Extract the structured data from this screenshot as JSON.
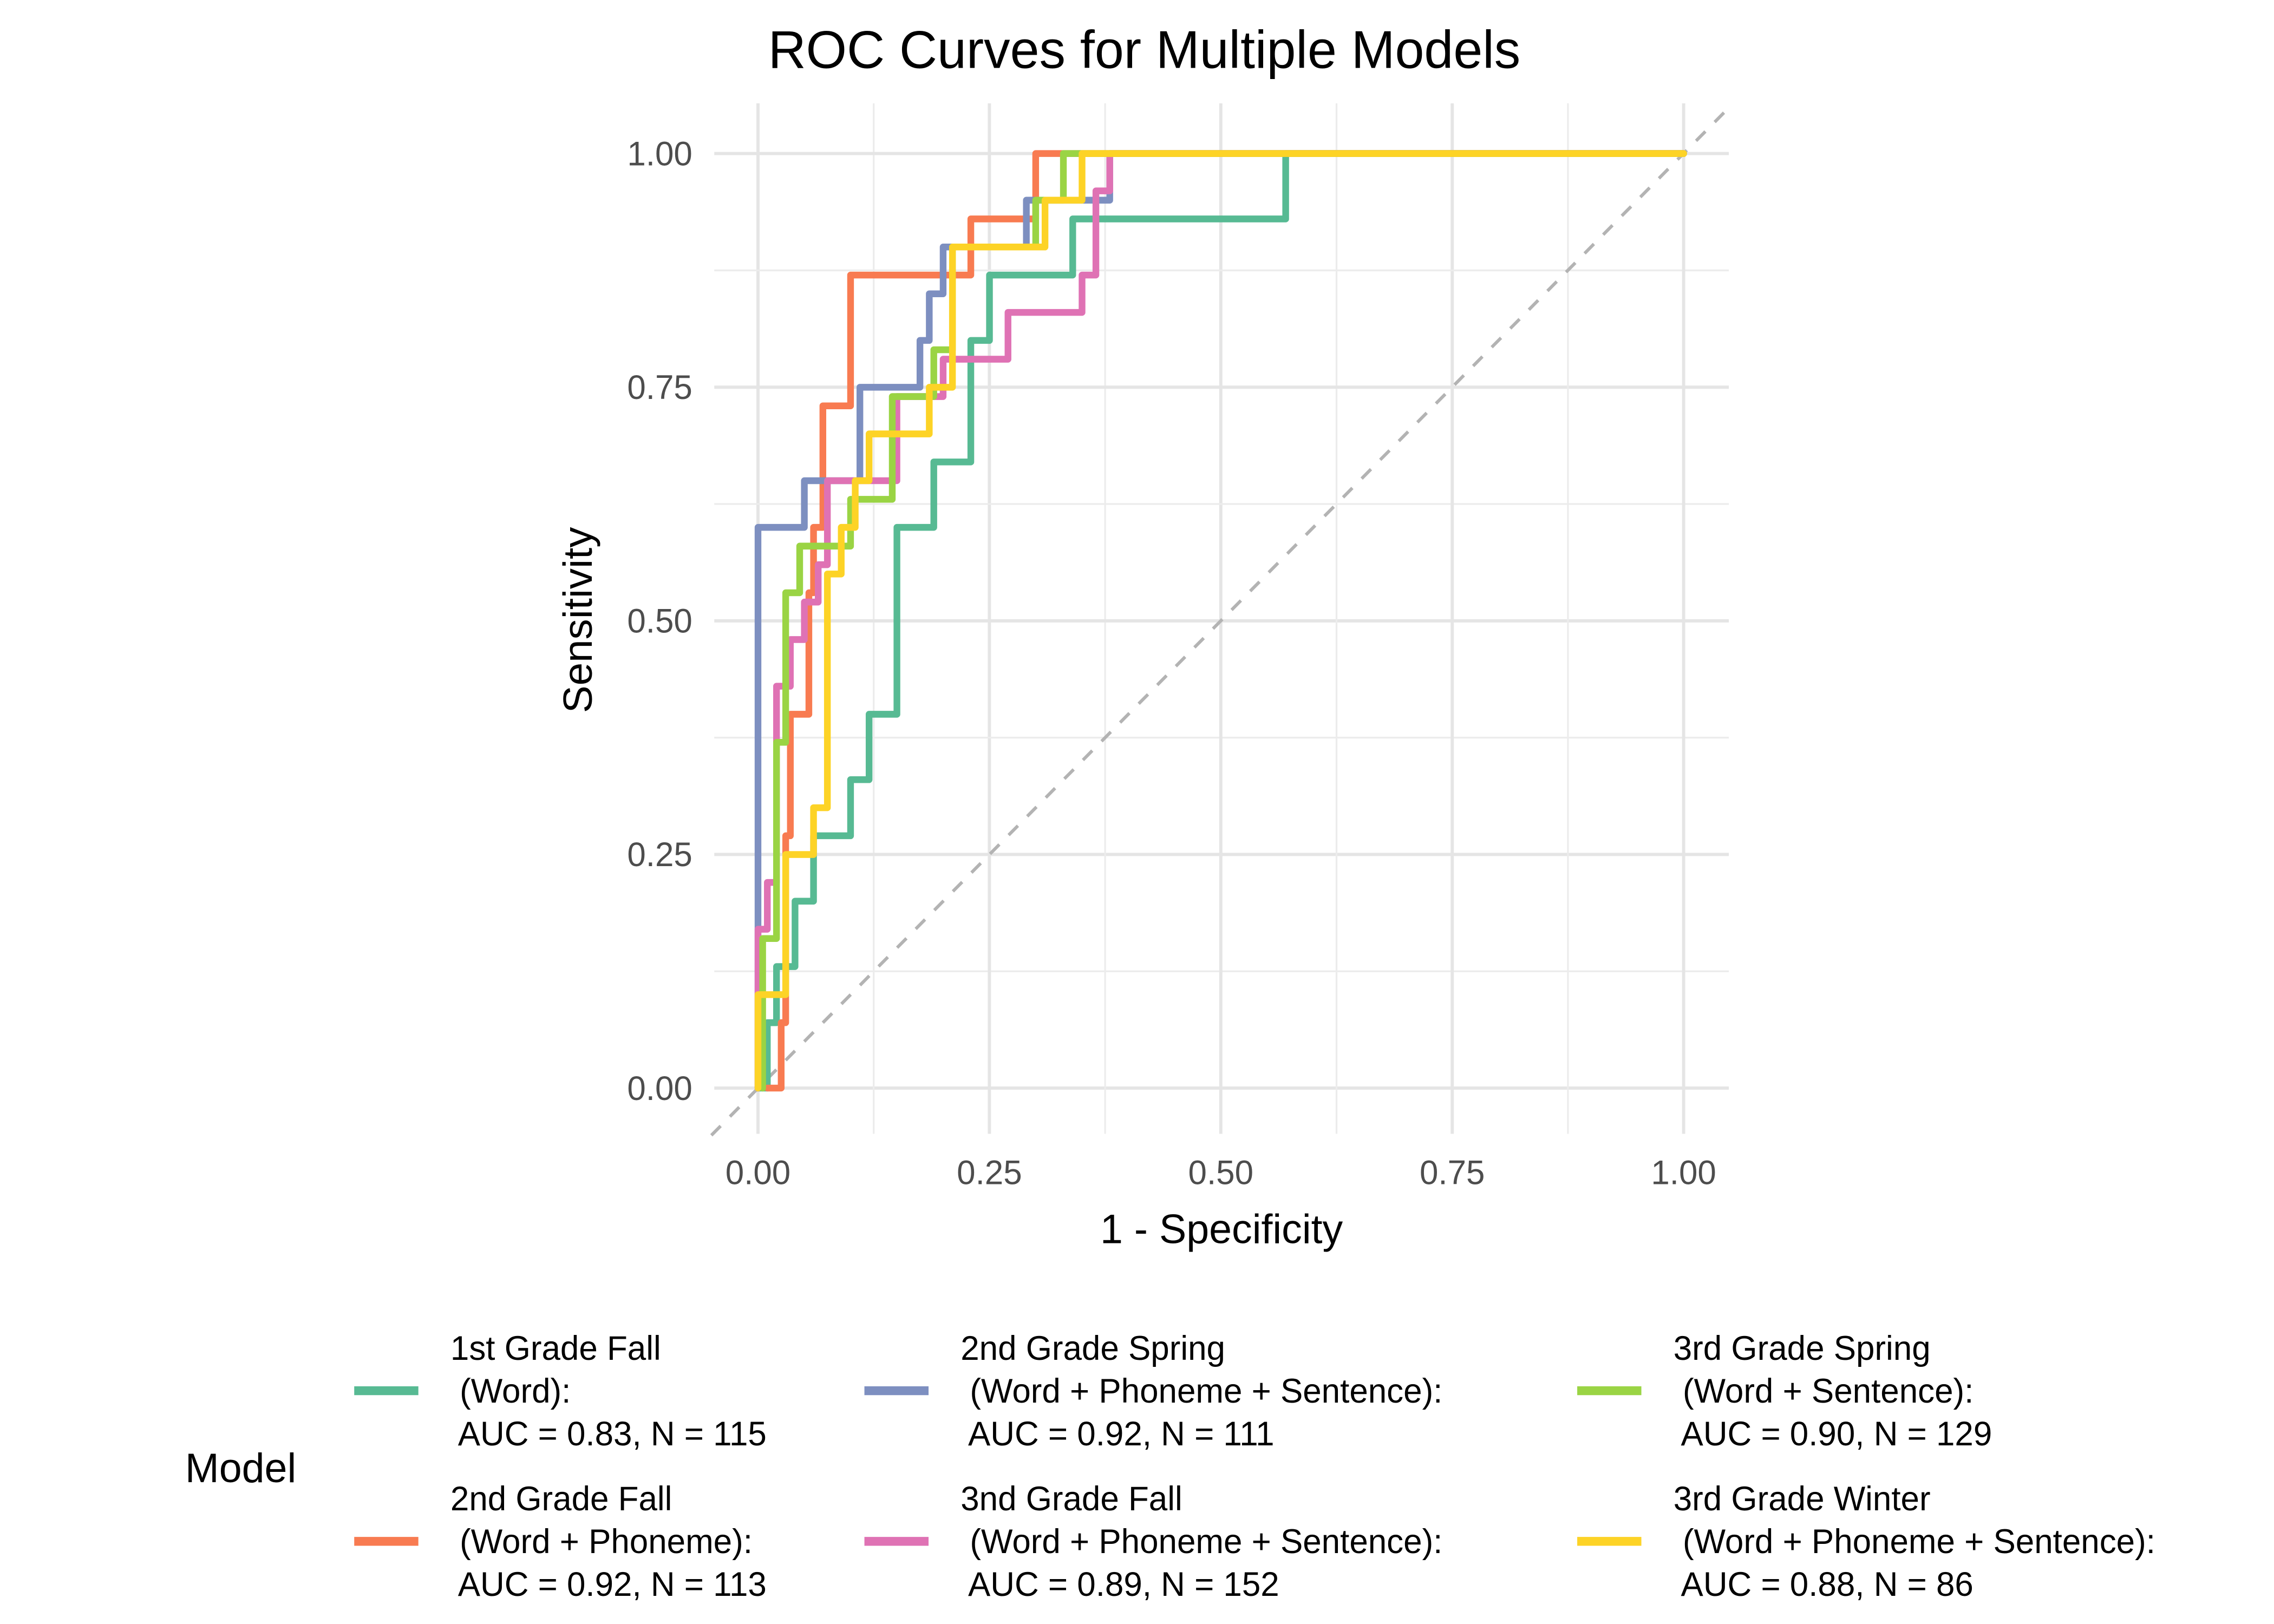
{
  "chart_data": {
    "type": "line",
    "subtype": "roc-step",
    "title": "ROC Curves for Multiple Models",
    "xlabel": "1 - Specificity",
    "ylabel": "Sensitivity",
    "xlim": [
      0,
      1
    ],
    "ylim": [
      0,
      1
    ],
    "x_ticks": [
      "0.00",
      "0.25",
      "0.50",
      "0.75",
      "1.00"
    ],
    "y_ticks": [
      "0.00",
      "0.25",
      "0.50",
      "0.75",
      "1.00"
    ],
    "x_tick_values": [
      0,
      0.25,
      0.5,
      0.75,
      1
    ],
    "y_tick_values": [
      0,
      0.25,
      0.5,
      0.75,
      1
    ],
    "grid": true,
    "reference_line": {
      "type": "diagonal",
      "style": "dashed",
      "color": "#B3B3B3"
    },
    "legend": {
      "title": "Model",
      "position": "bottom",
      "columns": 3
    },
    "series": [
      {
        "name": "1st Grade Fall (Word)",
        "label_lines": [
          "1st Grade Fall",
          " (Word):",
          " AUC = 0.83, N = 115"
        ],
        "auc": 0.83,
        "n": 115,
        "color": "#57BA93",
        "points": [
          [
            0,
            0
          ],
          [
            0.01,
            0
          ],
          [
            0.01,
            0.07
          ],
          [
            0.02,
            0.07
          ],
          [
            0.02,
            0.13
          ],
          [
            0.04,
            0.13
          ],
          [
            0.04,
            0.2
          ],
          [
            0.06,
            0.2
          ],
          [
            0.06,
            0.27
          ],
          [
            0.1,
            0.27
          ],
          [
            0.1,
            0.33
          ],
          [
            0.12,
            0.33
          ],
          [
            0.12,
            0.4
          ],
          [
            0.15,
            0.4
          ],
          [
            0.15,
            0.6
          ],
          [
            0.19,
            0.6
          ],
          [
            0.19,
            0.67
          ],
          [
            0.23,
            0.67
          ],
          [
            0.23,
            0.8
          ],
          [
            0.25,
            0.8
          ],
          [
            0.25,
            0.87
          ],
          [
            0.34,
            0.87
          ],
          [
            0.34,
            0.93
          ],
          [
            0.57,
            0.93
          ],
          [
            0.57,
            1
          ],
          [
            1,
            1
          ]
        ]
      },
      {
        "name": "2nd Grade Fall (Word + Phoneme)",
        "label_lines": [
          "2nd Grade Fall",
          " (Word + Phoneme):",
          " AUC = 0.92, N = 113"
        ],
        "auc": 0.92,
        "n": 113,
        "color": "#F87B51",
        "points": [
          [
            0.01,
            0
          ],
          [
            0.025,
            0
          ],
          [
            0.025,
            0.07
          ],
          [
            0.03,
            0.07
          ],
          [
            0.03,
            0.27
          ],
          [
            0.035,
            0.27
          ],
          [
            0.035,
            0.4
          ],
          [
            0.055,
            0.4
          ],
          [
            0.055,
            0.53
          ],
          [
            0.06,
            0.53
          ],
          [
            0.06,
            0.6
          ],
          [
            0.07,
            0.6
          ],
          [
            0.07,
            0.73
          ],
          [
            0.1,
            0.73
          ],
          [
            0.1,
            0.87
          ],
          [
            0.23,
            0.87
          ],
          [
            0.23,
            0.93
          ],
          [
            0.3,
            0.93
          ],
          [
            0.3,
            1
          ],
          [
            1,
            1
          ]
        ]
      },
      {
        "name": "2nd Grade Spring (Word + Phoneme + Sentence)",
        "label_lines": [
          "2nd Grade Spring",
          " (Word + Phoneme + Sentence):",
          " AUC = 0.92, N = 111"
        ],
        "auc": 0.92,
        "n": 111,
        "color": "#7D8FC0",
        "points": [
          [
            0,
            0
          ],
          [
            0,
            0.6
          ],
          [
            0.05,
            0.6
          ],
          [
            0.05,
            0.65
          ],
          [
            0.11,
            0.65
          ],
          [
            0.11,
            0.75
          ],
          [
            0.175,
            0.75
          ],
          [
            0.175,
            0.8
          ],
          [
            0.185,
            0.8
          ],
          [
            0.185,
            0.85
          ],
          [
            0.2,
            0.85
          ],
          [
            0.2,
            0.9
          ],
          [
            0.29,
            0.9
          ],
          [
            0.29,
            0.95
          ],
          [
            0.38,
            0.95
          ],
          [
            0.38,
            1
          ],
          [
            1,
            1
          ]
        ]
      },
      {
        "name": "3nd Grade Fall (Word + Phoneme + Sentence)",
        "label_lines": [
          "3nd Grade Fall",
          " (Word + Phoneme + Sentence):",
          " AUC = 0.89, N = 152"
        ],
        "auc": 0.89,
        "n": 152,
        "color": "#DF72B4",
        "points": [
          [
            0,
            0
          ],
          [
            0,
            0.17
          ],
          [
            0.01,
            0.17
          ],
          [
            0.01,
            0.22
          ],
          [
            0.02,
            0.22
          ],
          [
            0.02,
            0.43
          ],
          [
            0.035,
            0.43
          ],
          [
            0.035,
            0.48
          ],
          [
            0.05,
            0.48
          ],
          [
            0.05,
            0.52
          ],
          [
            0.065,
            0.52
          ],
          [
            0.065,
            0.56
          ],
          [
            0.075,
            0.56
          ],
          [
            0.075,
            0.65
          ],
          [
            0.15,
            0.65
          ],
          [
            0.15,
            0.74
          ],
          [
            0.2,
            0.74
          ],
          [
            0.2,
            0.78
          ],
          [
            0.27,
            0.78
          ],
          [
            0.27,
            0.83
          ],
          [
            0.35,
            0.83
          ],
          [
            0.35,
            0.87
          ],
          [
            0.365,
            0.87
          ],
          [
            0.365,
            0.96
          ],
          [
            0.38,
            0.96
          ],
          [
            0.38,
            1
          ],
          [
            1,
            1
          ]
        ]
      },
      {
        "name": "3rd Grade Spring (Word + Sentence)",
        "label_lines": [
          "3rd Grade Spring",
          " (Word + Sentence):",
          " AUC = 0.90, N = 129"
        ],
        "auc": 0.9,
        "n": 129,
        "color": "#9AD444",
        "points": [
          [
            0.005,
            0
          ],
          [
            0.005,
            0.16
          ],
          [
            0.02,
            0.16
          ],
          [
            0.02,
            0.37
          ],
          [
            0.03,
            0.37
          ],
          [
            0.03,
            0.53
          ],
          [
            0.045,
            0.53
          ],
          [
            0.045,
            0.58
          ],
          [
            0.1,
            0.58
          ],
          [
            0.1,
            0.63
          ],
          [
            0.145,
            0.63
          ],
          [
            0.145,
            0.74
          ],
          [
            0.19,
            0.74
          ],
          [
            0.19,
            0.79
          ],
          [
            0.21,
            0.79
          ],
          [
            0.21,
            0.9
          ],
          [
            0.3,
            0.9
          ],
          [
            0.3,
            0.95
          ],
          [
            0.33,
            0.95
          ],
          [
            0.33,
            1
          ],
          [
            1,
            1
          ]
        ]
      },
      {
        "name": "3rd Grade Winter (Word + Phoneme + Sentence)",
        "label_lines": [
          "3rd Grade Winter",
          " (Word + Phoneme + Sentence):",
          " AUC = 0.88, N = 86"
        ],
        "auc": 0.88,
        "n": 86,
        "color": "#FDD326",
        "points": [
          [
            0,
            0
          ],
          [
            0,
            0.1
          ],
          [
            0.03,
            0.1
          ],
          [
            0.03,
            0.25
          ],
          [
            0.06,
            0.25
          ],
          [
            0.06,
            0.3
          ],
          [
            0.075,
            0.3
          ],
          [
            0.075,
            0.55
          ],
          [
            0.09,
            0.55
          ],
          [
            0.09,
            0.6
          ],
          [
            0.105,
            0.6
          ],
          [
            0.105,
            0.65
          ],
          [
            0.12,
            0.65
          ],
          [
            0.12,
            0.7
          ],
          [
            0.185,
            0.7
          ],
          [
            0.185,
            0.75
          ],
          [
            0.21,
            0.75
          ],
          [
            0.21,
            0.9
          ],
          [
            0.31,
            0.9
          ],
          [
            0.31,
            0.95
          ],
          [
            0.35,
            0.95
          ],
          [
            0.35,
            1
          ],
          [
            1,
            1
          ]
        ]
      }
    ]
  }
}
